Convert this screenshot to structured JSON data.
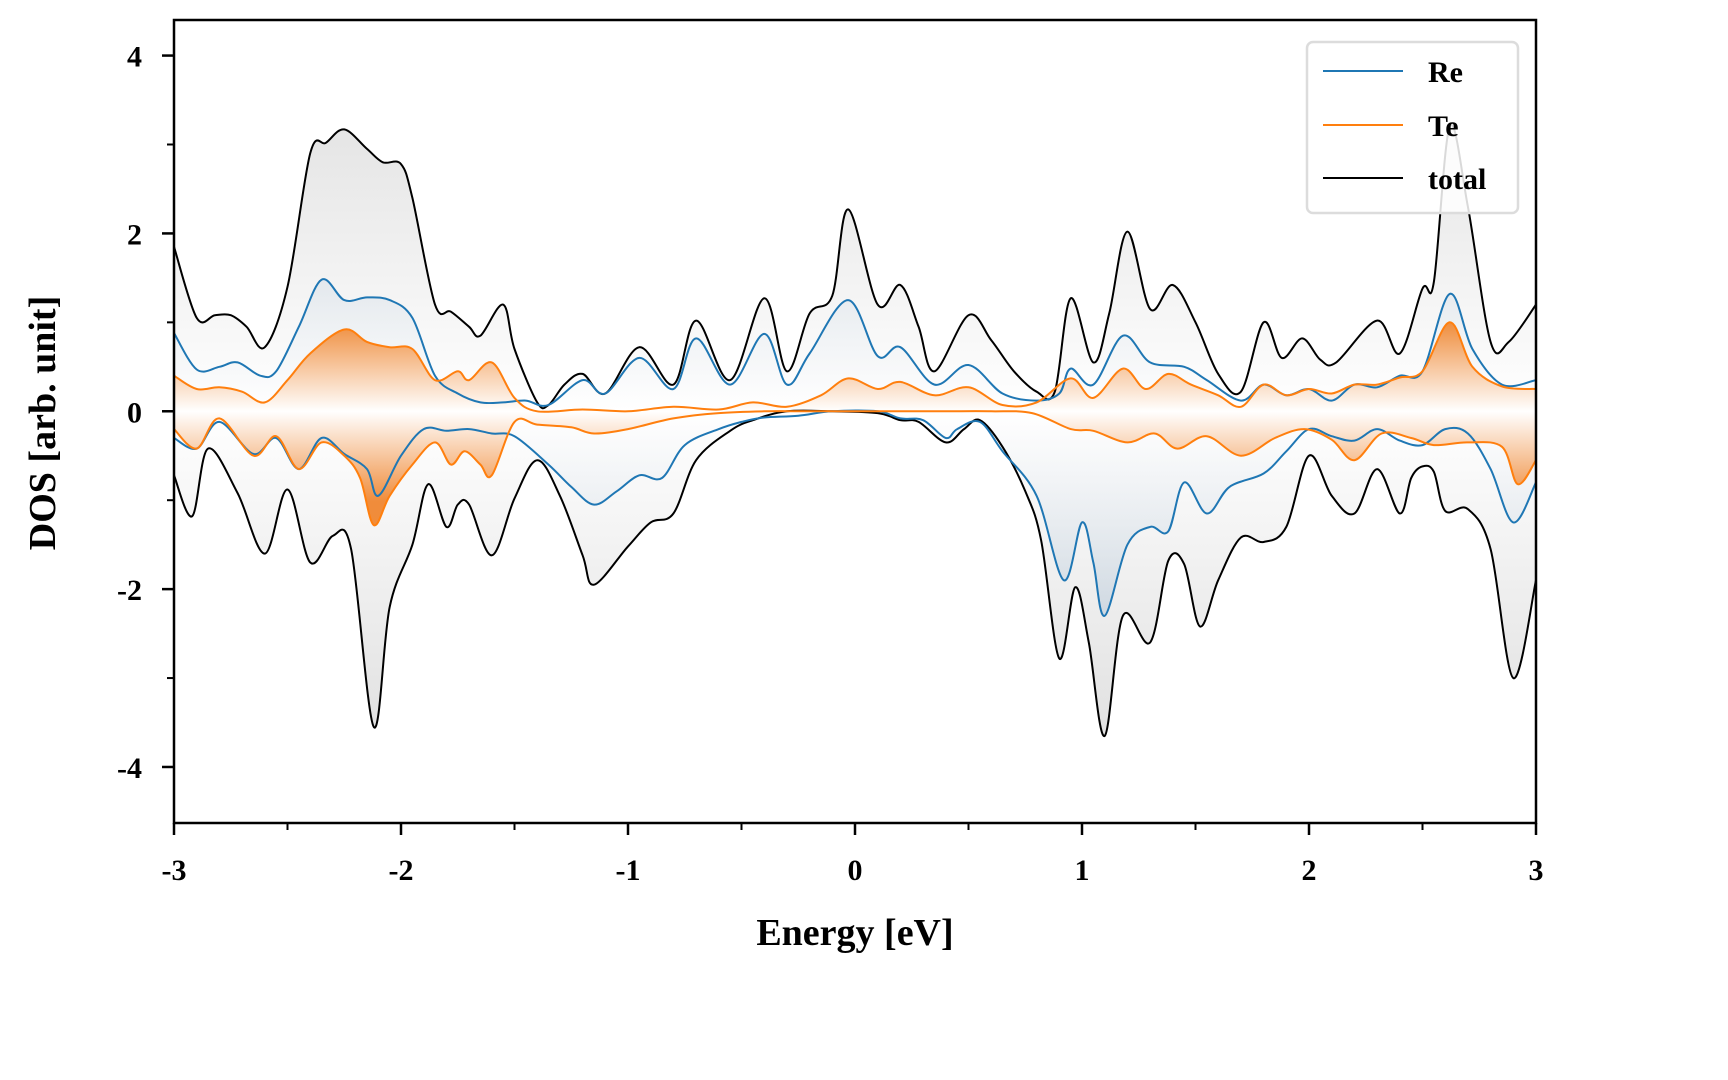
{
  "chart_data": {
    "type": "line",
    "title": "",
    "xlabel": "Energy [eV]",
    "ylabel": "DOS [arb. unit]",
    "xlim": [
      -3,
      3
    ],
    "ylim": [
      -4.63,
      4.4
    ],
    "xticks": [
      -3,
      -2,
      -1,
      0,
      1,
      2,
      3
    ],
    "xtick_labels": [
      "-3",
      "-2",
      "-1",
      "0",
      "1",
      "2",
      "3"
    ],
    "xminor": [
      -2.5,
      -1.5,
      -0.5,
      0.5,
      1.5,
      2.5
    ],
    "yticks": [
      -4,
      -2,
      0,
      2,
      4
    ],
    "ytick_labels": [
      "-4",
      "-2",
      "0",
      "2",
      "4"
    ],
    "yminor": [
      -3,
      -1,
      1,
      3
    ],
    "grid": false,
    "legend_position": "top-right",
    "legend": [
      "Re",
      "Te",
      "total"
    ],
    "colors": {
      "Re": "#1f77b4",
      "Te": "#ff7f0e",
      "total": "#000000"
    },
    "series": [
      {
        "name": "total",
        "channel": "spin-up",
        "x": [
          -3.0,
          -2.9,
          -2.82,
          -2.75,
          -2.68,
          -2.6,
          -2.5,
          -2.4,
          -2.33,
          -2.25,
          -2.15,
          -2.08,
          -2.0,
          -1.95,
          -1.85,
          -1.78,
          -1.7,
          -1.65,
          -1.55,
          -1.5,
          -1.4,
          -1.35,
          -1.28,
          -1.2,
          -1.1,
          -0.95,
          -0.8,
          -0.7,
          -0.55,
          -0.4,
          -0.3,
          -0.2,
          -0.1,
          -0.03,
          0.1,
          0.2,
          0.28,
          0.35,
          0.5,
          0.6,
          0.7,
          0.8,
          0.88,
          0.95,
          1.05,
          1.12,
          1.2,
          1.3,
          1.4,
          1.5,
          1.6,
          1.7,
          1.8,
          1.88,
          1.97,
          2.05,
          2.12,
          2.3,
          2.4,
          2.5,
          2.55,
          2.62,
          2.7,
          2.8,
          2.88,
          3.0
        ],
        "y": [
          1.85,
          1.05,
          1.08,
          1.08,
          0.95,
          0.72,
          1.4,
          2.9,
          3.02,
          3.17,
          2.95,
          2.8,
          2.78,
          2.4,
          1.2,
          1.12,
          0.95,
          0.85,
          1.2,
          0.7,
          0.1,
          0.07,
          0.3,
          0.42,
          0.2,
          0.72,
          0.3,
          1.02,
          0.35,
          1.27,
          0.45,
          1.1,
          1.3,
          2.27,
          1.2,
          1.42,
          0.95,
          0.45,
          1.08,
          0.8,
          0.45,
          0.22,
          0.22,
          1.27,
          0.55,
          1.1,
          2.02,
          1.15,
          1.42,
          1.0,
          0.42,
          0.22,
          1.0,
          0.6,
          0.82,
          0.58,
          0.55,
          1.02,
          0.65,
          1.38,
          1.45,
          3.2,
          2.3,
          0.78,
          0.78,
          1.2
        ]
      },
      {
        "name": "total",
        "channel": "spin-down",
        "x": [
          -3.0,
          -2.92,
          -2.85,
          -2.72,
          -2.6,
          -2.5,
          -2.4,
          -2.3,
          -2.22,
          -2.12,
          -2.05,
          -1.95,
          -1.88,
          -1.8,
          -1.75,
          -1.7,
          -1.6,
          -1.5,
          -1.4,
          -1.3,
          -1.2,
          -1.15,
          -1.0,
          -0.9,
          -0.8,
          -0.7,
          -0.55,
          -0.45,
          -0.3,
          -0.1,
          0.1,
          0.2,
          0.28,
          0.4,
          0.48,
          0.55,
          0.65,
          0.75,
          0.82,
          0.9,
          0.97,
          1.03,
          1.1,
          1.18,
          1.3,
          1.38,
          1.45,
          1.52,
          1.6,
          1.7,
          1.8,
          1.9,
          2.0,
          2.1,
          2.2,
          2.3,
          2.4,
          2.45,
          2.5,
          2.55,
          2.6,
          2.7,
          2.8,
          2.9,
          3.0
        ],
        "y": [
          -0.72,
          -1.18,
          -0.42,
          -0.92,
          -1.6,
          -0.88,
          -1.7,
          -1.4,
          -1.55,
          -3.55,
          -2.2,
          -1.5,
          -0.82,
          -1.3,
          -1.05,
          -1.05,
          -1.62,
          -0.98,
          -0.55,
          -0.95,
          -1.62,
          -1.95,
          -1.52,
          -1.25,
          -1.15,
          -0.55,
          -0.22,
          -0.1,
          0.0,
          0.0,
          -0.02,
          -0.1,
          -0.12,
          -0.35,
          -0.2,
          -0.1,
          -0.4,
          -0.9,
          -1.45,
          -2.78,
          -1.98,
          -2.6,
          -3.65,
          -2.3,
          -2.6,
          -1.68,
          -1.72,
          -2.42,
          -1.9,
          -1.42,
          -1.47,
          -1.3,
          -0.5,
          -0.95,
          -1.15,
          -0.65,
          -1.15,
          -0.75,
          -0.62,
          -0.68,
          -1.12,
          -1.1,
          -1.55,
          -3.0,
          -1.9
        ]
      },
      {
        "name": "Re",
        "channel": "spin-up",
        "x": [
          -3.0,
          -2.9,
          -2.8,
          -2.72,
          -2.62,
          -2.55,
          -2.45,
          -2.35,
          -2.25,
          -2.15,
          -2.05,
          -1.95,
          -1.85,
          -1.75,
          -1.65,
          -1.55,
          -1.45,
          -1.35,
          -1.2,
          -1.1,
          -0.95,
          -0.8,
          -0.7,
          -0.55,
          -0.4,
          -0.3,
          -0.2,
          -0.03,
          0.1,
          0.2,
          0.35,
          0.5,
          0.65,
          0.8,
          0.9,
          0.95,
          1.05,
          1.18,
          1.3,
          1.45,
          1.55,
          1.7,
          1.8,
          1.9,
          2.0,
          2.1,
          2.2,
          2.3,
          2.4,
          2.5,
          2.62,
          2.72,
          2.85,
          3.0
        ],
        "y": [
          0.88,
          0.47,
          0.5,
          0.55,
          0.4,
          0.45,
          0.95,
          1.48,
          1.25,
          1.28,
          1.25,
          1.05,
          0.4,
          0.2,
          0.1,
          0.1,
          0.12,
          0.07,
          0.35,
          0.2,
          0.6,
          0.25,
          0.82,
          0.3,
          0.87,
          0.3,
          0.65,
          1.25,
          0.62,
          0.72,
          0.3,
          0.52,
          0.2,
          0.12,
          0.2,
          0.48,
          0.3,
          0.85,
          0.55,
          0.5,
          0.35,
          0.12,
          0.3,
          0.18,
          0.25,
          0.12,
          0.3,
          0.27,
          0.4,
          0.45,
          1.32,
          0.7,
          0.3,
          0.35
        ]
      },
      {
        "name": "Re",
        "channel": "spin-down",
        "x": [
          -3.0,
          -2.9,
          -2.8,
          -2.65,
          -2.55,
          -2.45,
          -2.35,
          -2.25,
          -2.15,
          -2.1,
          -2.0,
          -1.9,
          -1.8,
          -1.7,
          -1.6,
          -1.5,
          -1.35,
          -1.25,
          -1.15,
          -1.05,
          -0.95,
          -0.85,
          -0.75,
          -0.6,
          -0.5,
          -0.4,
          -0.25,
          -0.1,
          0.1,
          0.2,
          0.3,
          0.4,
          0.45,
          0.55,
          0.65,
          0.8,
          0.92,
          1.0,
          1.05,
          1.1,
          1.2,
          1.3,
          1.38,
          1.45,
          1.55,
          1.65,
          1.8,
          1.9,
          2.0,
          2.1,
          2.2,
          2.3,
          2.4,
          2.5,
          2.6,
          2.7,
          2.8,
          2.9,
          3.0
        ],
        "y": [
          -0.3,
          -0.42,
          -0.12,
          -0.48,
          -0.3,
          -0.65,
          -0.3,
          -0.48,
          -0.65,
          -0.95,
          -0.5,
          -0.2,
          -0.22,
          -0.2,
          -0.25,
          -0.28,
          -0.6,
          -0.85,
          -1.05,
          -0.9,
          -0.72,
          -0.75,
          -0.38,
          -0.2,
          -0.12,
          -0.07,
          -0.05,
          0.0,
          0.0,
          -0.08,
          -0.1,
          -0.3,
          -0.2,
          -0.12,
          -0.45,
          -0.95,
          -1.9,
          -1.25,
          -1.7,
          -2.3,
          -1.5,
          -1.3,
          -1.35,
          -0.8,
          -1.15,
          -0.85,
          -0.7,
          -0.45,
          -0.2,
          -0.28,
          -0.33,
          -0.2,
          -0.33,
          -0.38,
          -0.2,
          -0.25,
          -0.65,
          -1.25,
          -0.8
        ]
      },
      {
        "name": "Te",
        "channel": "spin-up",
        "x": [
          -3.0,
          -2.9,
          -2.8,
          -2.7,
          -2.6,
          -2.5,
          -2.4,
          -2.25,
          -2.15,
          -2.05,
          -1.95,
          -1.85,
          -1.75,
          -1.7,
          -1.6,
          -1.5,
          -1.4,
          -1.2,
          -1.0,
          -0.8,
          -0.6,
          -0.45,
          -0.3,
          -0.15,
          -0.03,
          0.1,
          0.2,
          0.35,
          0.5,
          0.65,
          0.8,
          0.95,
          1.05,
          1.18,
          1.28,
          1.38,
          1.48,
          1.6,
          1.7,
          1.8,
          1.9,
          2.0,
          2.1,
          2.2,
          2.3,
          2.4,
          2.5,
          2.62,
          2.72,
          2.85,
          3.0
        ],
        "y": [
          0.4,
          0.25,
          0.27,
          0.22,
          0.1,
          0.35,
          0.65,
          0.92,
          0.78,
          0.72,
          0.7,
          0.35,
          0.45,
          0.35,
          0.55,
          0.15,
          0.0,
          0.02,
          0.0,
          0.05,
          0.02,
          0.1,
          0.05,
          0.18,
          0.37,
          0.25,
          0.33,
          0.18,
          0.27,
          0.07,
          0.1,
          0.37,
          0.15,
          0.48,
          0.25,
          0.42,
          0.3,
          0.18,
          0.05,
          0.3,
          0.18,
          0.25,
          0.2,
          0.3,
          0.3,
          0.38,
          0.45,
          1.0,
          0.5,
          0.28,
          0.25
        ]
      },
      {
        "name": "Te",
        "channel": "spin-down",
        "x": [
          -3.0,
          -2.9,
          -2.8,
          -2.65,
          -2.55,
          -2.45,
          -2.35,
          -2.25,
          -2.18,
          -2.12,
          -2.05,
          -1.95,
          -1.85,
          -1.78,
          -1.72,
          -1.65,
          -1.6,
          -1.5,
          -1.4,
          -1.25,
          -1.15,
          -1.0,
          -0.8,
          -0.6,
          -0.4,
          -0.2,
          0.0,
          0.2,
          0.4,
          0.6,
          0.78,
          0.95,
          1.05,
          1.2,
          1.32,
          1.42,
          1.55,
          1.7,
          1.85,
          1.98,
          2.1,
          2.2,
          2.32,
          2.45,
          2.55,
          2.7,
          2.85,
          2.92,
          3.0
        ],
        "y": [
          -0.2,
          -0.42,
          -0.08,
          -0.5,
          -0.28,
          -0.65,
          -0.35,
          -0.5,
          -0.75,
          -1.28,
          -0.95,
          -0.6,
          -0.35,
          -0.6,
          -0.45,
          -0.6,
          -0.72,
          -0.12,
          -0.15,
          -0.18,
          -0.25,
          -0.2,
          -0.08,
          -0.02,
          0.0,
          0.0,
          0.0,
          0.0,
          0.0,
          0.0,
          -0.02,
          -0.2,
          -0.22,
          -0.35,
          -0.25,
          -0.42,
          -0.28,
          -0.5,
          -0.3,
          -0.2,
          -0.32,
          -0.55,
          -0.25,
          -0.3,
          -0.38,
          -0.35,
          -0.4,
          -0.82,
          -0.55
        ]
      }
    ]
  }
}
